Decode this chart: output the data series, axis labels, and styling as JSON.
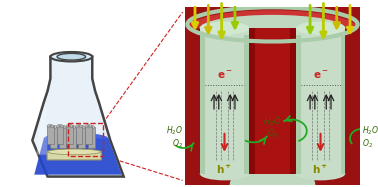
{
  "bg_color": "#ffffff",
  "flask_body_color": "#e8f4f8",
  "flask_outline": "#444444",
  "flask_neck_color": "#d0e8f0",
  "liquid_color": "#2244cc",
  "liquid_highlight": "#4466ee",
  "substrate_color": "#d8d8aa",
  "nanotube_body": "#aaaaaa",
  "nanotube_edge": "#666666",
  "dashed_box_color": "#cc2222",
  "tube_outer_dark": "#991111",
  "tube_outer_mid": "#bb2222",
  "tube_inner_light": "#c8ddc8",
  "tube_rim_color": "#c0d8c0",
  "tube_wall_shadow": "#770000",
  "overlayer_color": "#b0ccb0",
  "light_arrow_y": [
    "#ddcc00",
    "#bbbb00",
    "#99cc00",
    "#77cc00",
    "#55bb00",
    "#33aa00",
    "#22aa22"
  ],
  "light_arrow_g": [
    "#ddcc00",
    "#aabb00",
    "#88cc00",
    "#55bb00",
    "#33aa22"
  ],
  "electron_color": "#cc2222",
  "hole_color": "#888800",
  "green_arrow": "#22aa22",
  "black_arrow": "#222222",
  "label_green": "#336600",
  "label_red": "#cc2222",
  "label_olive": "#777700"
}
